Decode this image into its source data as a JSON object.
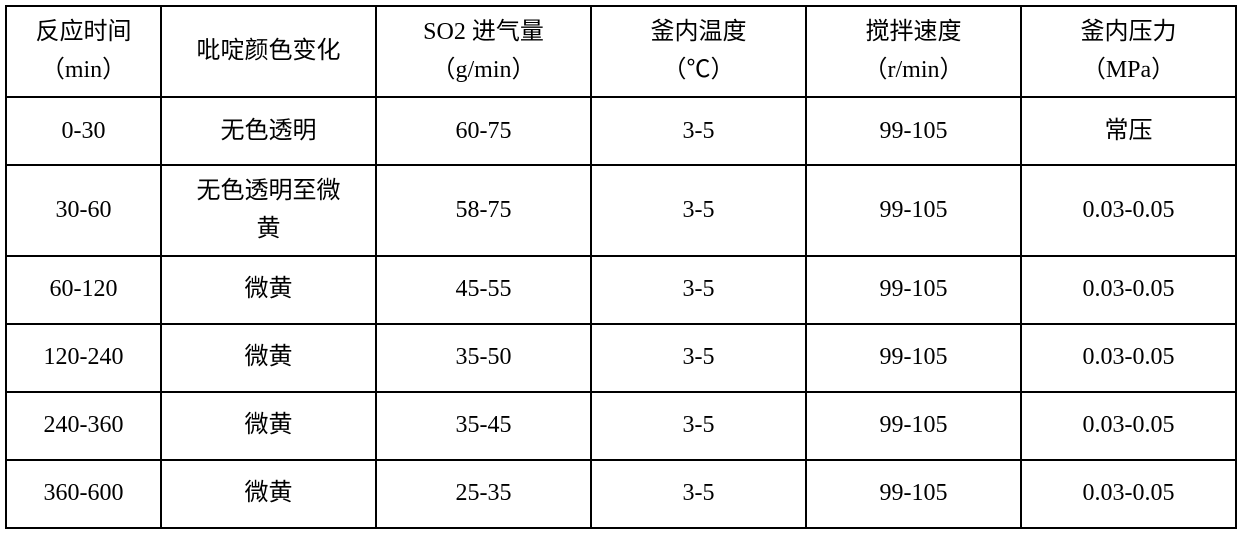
{
  "table": {
    "columns": [
      {
        "line1": "反应时间",
        "line2": "（min）"
      },
      {
        "line1": "吡啶颜色变化",
        "line2": ""
      },
      {
        "line1": "SO2 进气量",
        "line2": "（g/min）"
      },
      {
        "line1": "釜内温度",
        "line2": "（℃）"
      },
      {
        "line1": "搅拌速度",
        "line2": "（r/min）"
      },
      {
        "line1": "釜内压力",
        "line2": "（MPa）"
      }
    ],
    "rows": [
      {
        "time": "0-30",
        "color_l1": "无色透明",
        "color_l2": "",
        "so2": "60-75",
        "temp": "3-5",
        "stir": "99-105",
        "pressure": "常压"
      },
      {
        "time": "30-60",
        "color_l1": "无色透明至微",
        "color_l2": "黄",
        "so2": "58-75",
        "temp": "3-5",
        "stir": "99-105",
        "pressure": "0.03-0.05"
      },
      {
        "time": "60-120",
        "color_l1": "微黄",
        "color_l2": "",
        "so2": "45-55",
        "temp": "3-5",
        "stir": "99-105",
        "pressure": "0.03-0.05"
      },
      {
        "time": "120-240",
        "color_l1": "微黄",
        "color_l2": "",
        "so2": "35-50",
        "temp": "3-5",
        "stir": "99-105",
        "pressure": "0.03-0.05"
      },
      {
        "time": "240-360",
        "color_l1": "微黄",
        "color_l2": "",
        "so2": "35-45",
        "temp": "3-5",
        "stir": "99-105",
        "pressure": "0.03-0.05"
      },
      {
        "time": "360-600",
        "color_l1": "微黄",
        "color_l2": "",
        "so2": "25-35",
        "temp": "3-5",
        "stir": "99-105",
        "pressure": "0.03-0.05"
      }
    ]
  }
}
